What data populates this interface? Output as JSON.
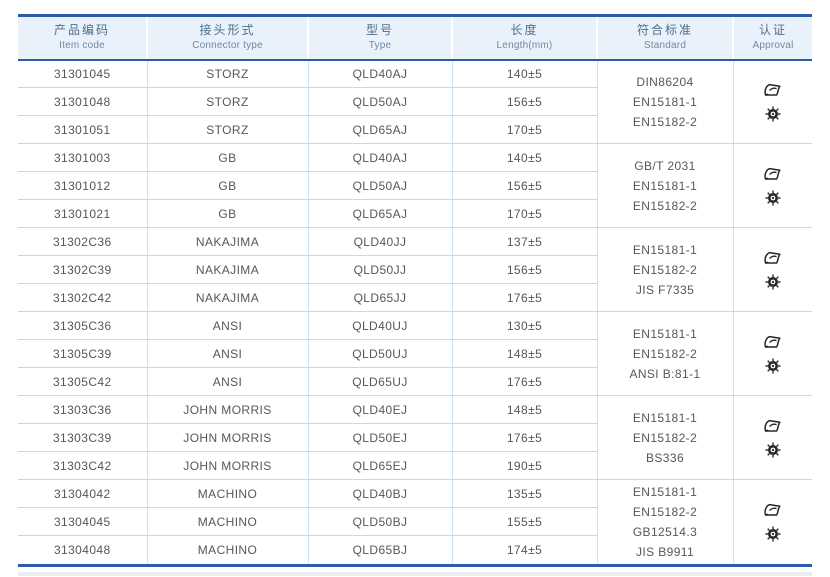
{
  "page": {
    "background": "#ffffff"
  },
  "colors": {
    "accent_blue": "#2b5ca9",
    "header_bg": "#e9f2fa",
    "header_text_zh": "#4e6e8c",
    "header_text_en": "#7289a2",
    "row_separator_blue": "#b9dcef",
    "column_separator_blue": "#c9e5f4",
    "cell_text": "#575757",
    "icon_dark": "#262626"
  },
  "table": {
    "columns": [
      {
        "id": "item_code",
        "zh": "产品编码",
        "en": "Item code"
      },
      {
        "id": "connector_type",
        "zh": "接头形式",
        "en": "Connector type"
      },
      {
        "id": "type",
        "zh": "型号",
        "en": "Type"
      },
      {
        "id": "length",
        "zh": "长度",
        "en": "Length(mm)"
      },
      {
        "id": "standard",
        "zh": "符合标准",
        "en": "Standard"
      },
      {
        "id": "approval",
        "zh": "认证",
        "en": "Approval"
      }
    ],
    "groups": [
      {
        "connector": "STORZ",
        "rows": [
          {
            "item_code": "31301045",
            "connector_type": "STORZ",
            "type": "QLD40AJ",
            "length": "140±5"
          },
          {
            "item_code": "31301048",
            "connector_type": "STORZ",
            "type": "QLD50AJ",
            "length": "156±5"
          },
          {
            "item_code": "31301051",
            "connector_type": "STORZ",
            "type": "QLD65AJ",
            "length": "170±5"
          }
        ],
        "standards": [
          "DIN86204",
          "EN15181-1",
          "EN15182-2"
        ],
        "approval_icons": [
          "certificate-flag-icon",
          "wheelmark-icon"
        ]
      },
      {
        "connector": "GB",
        "rows": [
          {
            "item_code": "31301003",
            "connector_type": "GB",
            "type": "QLD40AJ",
            "length": "140±5"
          },
          {
            "item_code": "31301012",
            "connector_type": "GB",
            "type": "QLD50AJ",
            "length": "156±5"
          },
          {
            "item_code": "31301021",
            "connector_type": "GB",
            "type": "QLD65AJ",
            "length": "170±5"
          }
        ],
        "standards": [
          "GB/T 2031",
          "EN15181-1",
          "EN15182-2"
        ],
        "approval_icons": [
          "certificate-flag-icon",
          "wheelmark-icon"
        ]
      },
      {
        "connector": "NAKAJIMA",
        "rows": [
          {
            "item_code": "31302C36",
            "connector_type": "NAKAJIMA",
            "type": "QLD40JJ",
            "length": "137±5"
          },
          {
            "item_code": "31302C39",
            "connector_type": "NAKAJIMA",
            "type": "QLD50JJ",
            "length": "156±5"
          },
          {
            "item_code": "31302C42",
            "connector_type": "NAKAJIMA",
            "type": "QLD65JJ",
            "length": "176±5"
          }
        ],
        "standards": [
          "EN15181-1",
          "EN15182-2",
          "JIS F7335"
        ],
        "approval_icons": [
          "certificate-flag-icon",
          "wheelmark-icon"
        ]
      },
      {
        "connector": "ANSI",
        "rows": [
          {
            "item_code": "31305C36",
            "connector_type": "ANSI",
            "type": "QLD40UJ",
            "length": "130±5"
          },
          {
            "item_code": "31305C39",
            "connector_type": "ANSI",
            "type": "QLD50UJ",
            "length": "148±5"
          },
          {
            "item_code": "31305C42",
            "connector_type": "ANSI",
            "type": "QLD65UJ",
            "length": "176±5"
          }
        ],
        "standards": [
          "EN15181-1",
          "EN15182-2",
          "ANSI B:81-1"
        ],
        "approval_icons": [
          "certificate-flag-icon",
          "wheelmark-icon"
        ]
      },
      {
        "connector": "JOHN MORRIS",
        "rows": [
          {
            "item_code": "31303C36",
            "connector_type": "JOHN MORRIS",
            "type": "QLD40EJ",
            "length": "148±5"
          },
          {
            "item_code": "31303C39",
            "connector_type": "JOHN MORRIS",
            "type": "QLD50EJ",
            "length": "176±5"
          },
          {
            "item_code": "31303C42",
            "connector_type": "JOHN MORRIS",
            "type": "QLD65EJ",
            "length": "190±5"
          }
        ],
        "standards": [
          "EN15181-1",
          "EN15182-2",
          "BS336"
        ],
        "approval_icons": [
          "certificate-flag-icon",
          "wheelmark-icon"
        ]
      },
      {
        "connector": "MACHINO",
        "rows": [
          {
            "item_code": "31304042",
            "connector_type": "MACHINO",
            "type": "QLD40BJ",
            "length": "135±5"
          },
          {
            "item_code": "31304045",
            "connector_type": "MACHINO",
            "type": "QLD50BJ",
            "length": "155±5"
          },
          {
            "item_code": "31304048",
            "connector_type": "MACHINO",
            "type": "QLD65BJ",
            "length": "174±5"
          }
        ],
        "standards": [
          "EN15181-1",
          "EN15182-2",
          "GB12514.3",
          "JIS B9911"
        ],
        "approval_icons": [
          "certificate-flag-icon",
          "wheelmark-icon"
        ]
      }
    ]
  }
}
